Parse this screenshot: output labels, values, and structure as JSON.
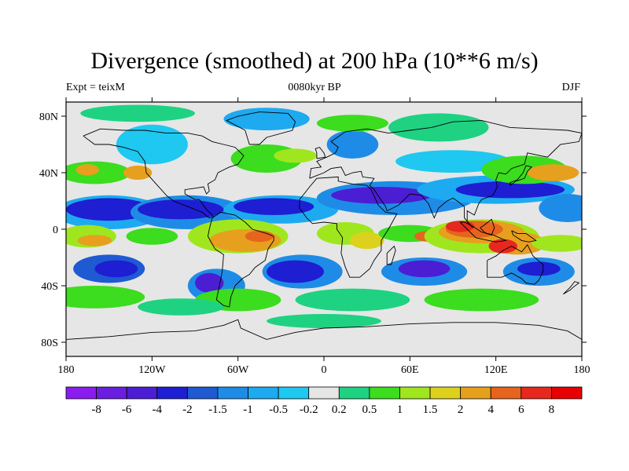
{
  "title": "Divergence (smoothed) at 200 hPa (10**6 m/s)",
  "subtitle_left": "Expt = teixM",
  "subtitle_center": "0080kyr BP",
  "subtitle_right": "DJF",
  "chart_data": {
    "type": "heatmap",
    "projection": "cylindrical-equidistant",
    "lon_range": [
      -180,
      180
    ],
    "lat_range": [
      -90,
      90
    ],
    "x_tick_labels": [
      "180",
      "120W",
      "60W",
      "0",
      "60E",
      "120E",
      "180"
    ],
    "y_tick_labels": [
      "80N",
      "40N",
      "0",
      "40S",
      "80S"
    ],
    "colorbar": {
      "levels": [
        "-8",
        "-6",
        "-4",
        "-2",
        "-1.5",
        "-1",
        "-0.5",
        "-0.2",
        "0.2",
        "0.5",
        "1",
        "1.5",
        "2",
        "4",
        "6",
        "8"
      ],
      "colors": [
        "#8a1cf0",
        "#6a1ee0",
        "#4b1ed4",
        "#1e1ed2",
        "#1e5ad2",
        "#1e8ce6",
        "#1eaaf0",
        "#1ec8f0",
        "#e6e6e6",
        "#1ed282",
        "#3cdc1e",
        "#a0e61e",
        "#dcd21e",
        "#e6a01e",
        "#e6641e",
        "#e6281e",
        "#e60000"
      ]
    }
  }
}
